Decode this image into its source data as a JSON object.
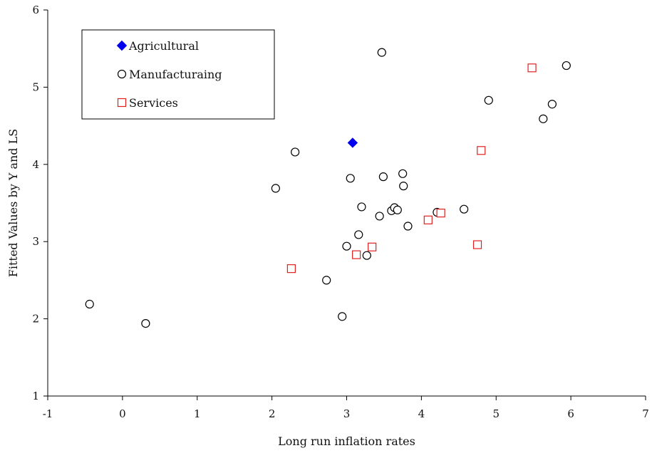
{
  "chart_data": {
    "type": "scatter",
    "title": "",
    "xlabel": "Long run inflation rates",
    "ylabel": "Fitted Values by Y and LS",
    "xlim": [
      -1,
      7
    ],
    "ylim": [
      1,
      6
    ],
    "xticks": [
      -1,
      0,
      1,
      2,
      3,
      4,
      5,
      6,
      7
    ],
    "yticks": [
      1,
      2,
      3,
      4,
      5,
      6
    ],
    "grid": false,
    "legend_position": "top-left",
    "series": [
      {
        "name": "Agricultural",
        "marker": "diamond",
        "color": "#0000ee",
        "filled": true,
        "points": [
          [
            3.08,
            4.28
          ]
        ]
      },
      {
        "name": "Manufacturaing",
        "marker": "circle",
        "color": "#000000",
        "filled": false,
        "points": [
          [
            -0.44,
            2.19
          ],
          [
            0.31,
            1.94
          ],
          [
            2.05,
            3.69
          ],
          [
            2.31,
            4.16
          ],
          [
            2.73,
            2.5
          ],
          [
            2.94,
            2.03
          ],
          [
            3.0,
            2.94
          ],
          [
            3.05,
            3.82
          ],
          [
            3.16,
            3.09
          ],
          [
            3.2,
            3.45
          ],
          [
            3.27,
            2.82
          ],
          [
            3.44,
            3.33
          ],
          [
            3.47,
            5.45
          ],
          [
            3.49,
            3.84
          ],
          [
            3.6,
            3.4
          ],
          [
            3.64,
            3.44
          ],
          [
            3.68,
            3.41
          ],
          [
            3.75,
            3.88
          ],
          [
            3.76,
            3.72
          ],
          [
            3.82,
            3.2
          ],
          [
            4.21,
            3.38
          ],
          [
            4.57,
            3.42
          ],
          [
            4.9,
            4.83
          ],
          [
            5.63,
            4.59
          ],
          [
            5.75,
            4.78
          ],
          [
            5.94,
            5.28
          ]
        ]
      },
      {
        "name": "Services",
        "marker": "square",
        "color": "#e02020",
        "filled": false,
        "points": [
          [
            2.26,
            2.65
          ],
          [
            3.13,
            2.83
          ],
          [
            3.34,
            2.93
          ],
          [
            4.09,
            3.28
          ],
          [
            4.26,
            3.37
          ],
          [
            4.75,
            2.96
          ],
          [
            4.8,
            4.18
          ],
          [
            5.48,
            5.25
          ]
        ]
      }
    ]
  }
}
